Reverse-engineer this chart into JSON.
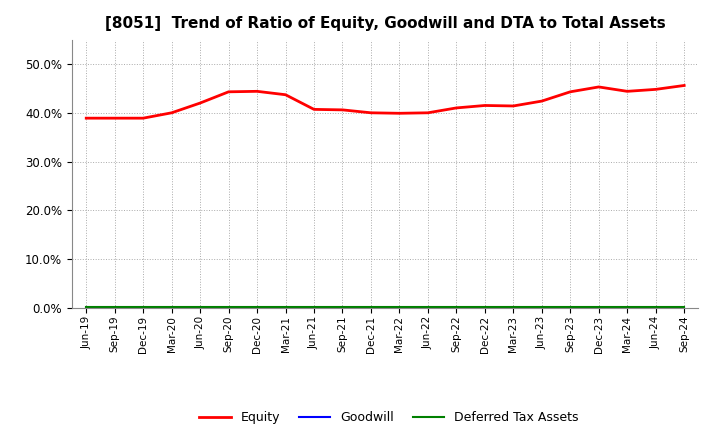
{
  "title": "[8051]  Trend of Ratio of Equity, Goodwill and DTA to Total Assets",
  "x_labels": [
    "Jun-19",
    "Sep-19",
    "Dec-19",
    "Mar-20",
    "Jun-20",
    "Sep-20",
    "Dec-20",
    "Mar-21",
    "Jun-21",
    "Sep-21",
    "Dec-21",
    "Mar-22",
    "Jun-22",
    "Sep-22",
    "Dec-22",
    "Mar-23",
    "Jun-23",
    "Sep-23",
    "Dec-23",
    "Mar-24",
    "Jun-24",
    "Sep-24"
  ],
  "equity": [
    0.389,
    0.389,
    0.389,
    0.4,
    0.42,
    0.443,
    0.444,
    0.437,
    0.407,
    0.406,
    0.4,
    0.399,
    0.4,
    0.41,
    0.415,
    0.414,
    0.424,
    0.443,
    0.453,
    0.444,
    0.448,
    0.456
  ],
  "goodwill": [
    0.0,
    0.0,
    0.0,
    0.0,
    0.0,
    0.0,
    0.0,
    0.0,
    0.0,
    0.0,
    0.0,
    0.0,
    0.0,
    0.0,
    0.0,
    0.0,
    0.0,
    0.0,
    0.0,
    0.0,
    0.0,
    0.0
  ],
  "dta": [
    0.003,
    0.003,
    0.003,
    0.003,
    0.003,
    0.003,
    0.003,
    0.003,
    0.003,
    0.003,
    0.003,
    0.003,
    0.003,
    0.003,
    0.003,
    0.003,
    0.003,
    0.003,
    0.003,
    0.003,
    0.003,
    0.003
  ],
  "equity_color": "#FF0000",
  "goodwill_color": "#0000FF",
  "dta_color": "#008000",
  "ylim": [
    0.0,
    0.55
  ],
  "yticks": [
    0.0,
    0.1,
    0.2,
    0.3,
    0.4,
    0.5
  ],
  "background_color": "#FFFFFF",
  "grid_color": "#AAAAAA",
  "title_fontsize": 11,
  "legend_labels": [
    "Equity",
    "Goodwill",
    "Deferred Tax Assets"
  ]
}
